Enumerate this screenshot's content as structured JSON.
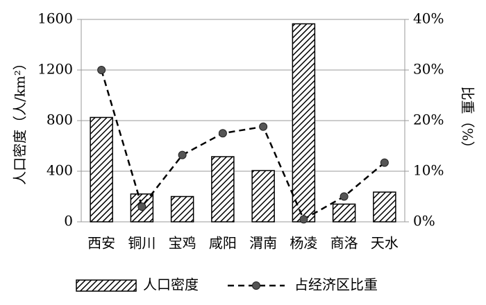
{
  "chart_data": {
    "type": "bar",
    "y_label": "人口密度（人/km²）",
    "y2_label": "比重（%）",
    "categories": [
      "西安",
      "铜川",
      "宝鸡",
      "咸阳",
      "渭南",
      "杨凌",
      "商洛",
      "天水"
    ],
    "series": [
      {
        "name": "人口密度",
        "type": "bar",
        "color": "#000000",
        "values": [
          825,
          220,
          200,
          515,
          405,
          1565,
          140,
          235
        ]
      },
      {
        "name": "占经济区比重",
        "type": "line",
        "axis": "y2",
        "color": "#000000",
        "marker_color": "#555555",
        "values": [
          30,
          3,
          13.2,
          17.5,
          18.8,
          0.5,
          5,
          11.7
        ]
      }
    ],
    "ylim": [
      0,
      1600
    ],
    "yticks": [
      0,
      400,
      800,
      1200,
      1600
    ],
    "y2lim": [
      0,
      40
    ],
    "y2ticks": [
      {
        "value": 0,
        "label": "0%"
      },
      {
        "value": 10,
        "label": "10%"
      },
      {
        "value": 20,
        "label": "20%"
      },
      {
        "value": 30,
        "label": "30%"
      },
      {
        "value": 40,
        "label": "40%"
      }
    ],
    "grid": true,
    "legend": "bottom"
  }
}
